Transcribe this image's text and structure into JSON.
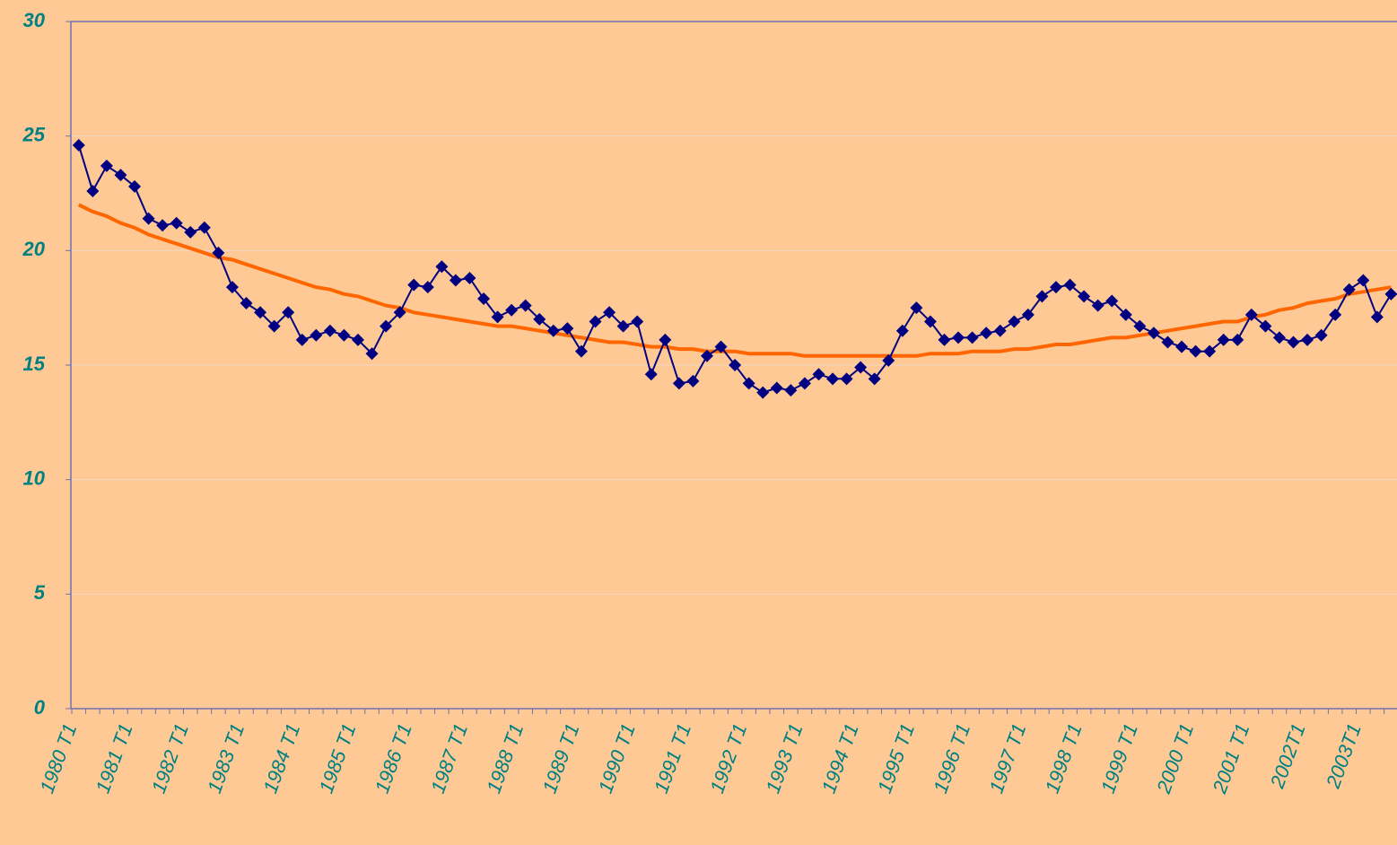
{
  "chart_data": {
    "type": "line",
    "categories": [
      "1980 T1",
      null,
      null,
      null,
      "1981 T1",
      null,
      null,
      null,
      "1982 T1",
      null,
      null,
      null,
      "1983 T1",
      null,
      null,
      null,
      "1984 T1",
      null,
      null,
      null,
      "1985 T1",
      null,
      null,
      null,
      "1986 T1",
      null,
      null,
      null,
      "1987 T1",
      null,
      null,
      null,
      "1988 T1",
      null,
      null,
      null,
      "1989 T1",
      null,
      null,
      null,
      "1990 T1",
      null,
      null,
      null,
      "1991 T1",
      null,
      null,
      null,
      "1992 T1",
      null,
      null,
      null,
      "1993 T1",
      null,
      null,
      null,
      "1994 T1",
      null,
      null,
      null,
      "1995 T1",
      null,
      null,
      null,
      "1996 T1",
      null,
      null,
      null,
      "1997 T1",
      null,
      null,
      null,
      "1998 T1",
      null,
      null,
      null,
      "1999 T1",
      null,
      null,
      null,
      "2000 T1",
      null,
      null,
      null,
      "2001 T1",
      null,
      null,
      null,
      "2002T1",
      null,
      null,
      null,
      "2003T1",
      null,
      null
    ],
    "series": [
      {
        "color": "#000080",
        "marker": "diamond",
        "values": [
          24.6,
          22.6,
          23.7,
          23.3,
          22.8,
          21.4,
          21.1,
          21.2,
          20.8,
          21.0,
          19.9,
          18.4,
          17.7,
          17.3,
          16.7,
          17.3,
          16.1,
          16.3,
          16.5,
          16.3,
          16.1,
          15.5,
          16.7,
          17.3,
          18.5,
          18.4,
          19.3,
          18.7,
          18.8,
          17.9,
          17.1,
          17.4,
          17.6,
          17.0,
          16.5,
          16.6,
          15.6,
          16.9,
          17.3,
          16.7,
          16.9,
          14.6,
          16.1,
          14.2,
          14.3,
          15.4,
          15.8,
          15.0,
          14.2,
          13.8,
          14.0,
          13.9,
          14.2,
          14.6,
          14.4,
          14.4,
          14.9,
          14.4,
          15.2,
          16.5,
          17.5,
          16.9,
          16.1,
          16.2,
          16.2,
          16.4,
          16.5,
          16.9,
          17.2,
          18.0,
          18.4,
          18.5,
          18.0,
          17.6,
          17.8,
          17.2,
          16.7,
          16.4,
          16.0,
          15.8,
          15.6,
          15.6,
          16.1,
          16.1,
          17.2,
          16.7,
          16.2,
          16.0,
          16.1,
          16.3,
          17.2,
          18.3,
          18.7,
          17.1,
          18.1
        ]
      },
      {
        "color": "#ff6600",
        "marker": null,
        "values": [
          22.0,
          21.7,
          21.5,
          21.2,
          21.0,
          20.7,
          20.5,
          20.3,
          20.1,
          19.9,
          19.7,
          19.6,
          19.4,
          19.2,
          19.0,
          18.8,
          18.6,
          18.4,
          18.3,
          18.1,
          18.0,
          17.8,
          17.6,
          17.5,
          17.3,
          17.2,
          17.1,
          17.0,
          16.9,
          16.8,
          16.7,
          16.7,
          16.6,
          16.5,
          16.4,
          16.3,
          16.2,
          16.1,
          16.0,
          16.0,
          15.9,
          15.8,
          15.8,
          15.7,
          15.7,
          15.6,
          15.6,
          15.6,
          15.5,
          15.5,
          15.5,
          15.5,
          15.4,
          15.4,
          15.4,
          15.4,
          15.4,
          15.4,
          15.4,
          15.4,
          15.4,
          15.5,
          15.5,
          15.5,
          15.6,
          15.6,
          15.6,
          15.7,
          15.7,
          15.8,
          15.9,
          15.9,
          16.0,
          16.1,
          16.2,
          16.2,
          16.3,
          16.4,
          16.5,
          16.6,
          16.7,
          16.8,
          16.9,
          16.9,
          17.1,
          17.2,
          17.4,
          17.5,
          17.7,
          17.8,
          17.9,
          18.1,
          18.2,
          18.3,
          18.4
        ]
      }
    ],
    "ylim": [
      0,
      30
    ],
    "yticks": [
      0,
      5,
      10,
      15,
      20,
      25,
      30
    ],
    "grid": true
  }
}
